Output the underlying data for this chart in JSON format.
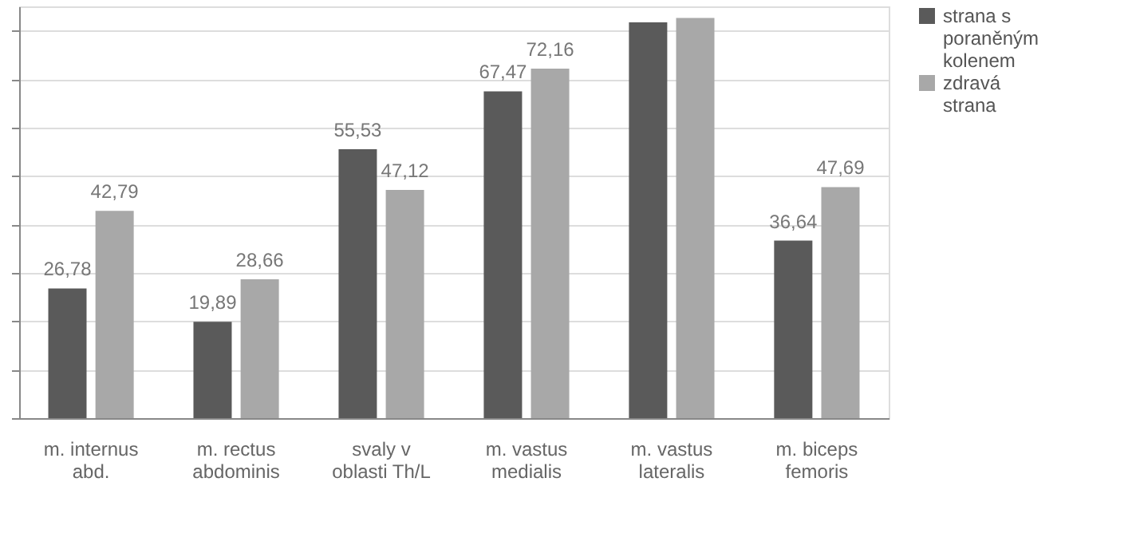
{
  "chart_data": {
    "type": "bar",
    "categories": [
      "m. internus abd.",
      "m. rectus abdominis",
      "svaly v oblasti Th/L",
      "m. vastus medialis",
      "m. vastus lateralis",
      "m. biceps femoris"
    ],
    "series": [
      {
        "name": "strana s poraněným kolenem",
        "color": "#5a5a5a",
        "values": [
          26.78,
          19.89,
          55.53,
          67.47,
          81.7,
          36.64
        ],
        "value_labels": [
          "26,78",
          "19,89",
          "55,53",
          "67,47",
          null,
          "36,64"
        ]
      },
      {
        "name": "zdravá strana",
        "color": "#a8a8a8",
        "values": [
          42.79,
          28.66,
          47.12,
          72.16,
          82.6,
          47.69
        ],
        "value_labels": [
          "42,79",
          "28,66",
          "47,12",
          "72,16",
          null,
          "47,69"
        ]
      }
    ],
    "ylim": [
      0,
      85
    ],
    "yticks": [
      {
        "value": 0,
        "label": null
      },
      {
        "value": 10,
        "label": null
      },
      {
        "value": 20,
        "label": null
      },
      {
        "value": 30,
        "label": null
      },
      {
        "value": 40,
        "label": null
      },
      {
        "value": 50,
        "label": null
      },
      {
        "value": 60,
        "label": null
      },
      {
        "value": 70,
        "label": null
      },
      {
        "value": 80,
        "label": null
      }
    ],
    "grid": "y",
    "legend": "right",
    "tick_labels": "x"
  }
}
